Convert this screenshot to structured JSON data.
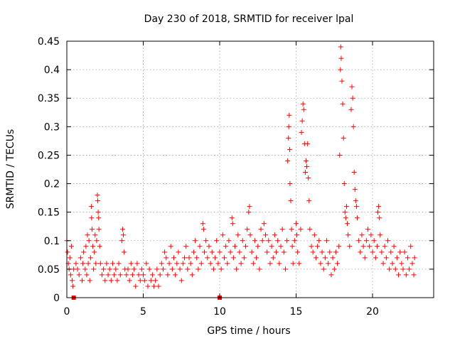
{
  "chart_data": {
    "type": "scatter",
    "title": "Day 230 of 2018, SRMTID for receiver lpal",
    "xlabel": "GPS time / hours",
    "ylabel": "SRMTID / TECUs",
    "xlim": [
      0,
      24
    ],
    "ylim": [
      0,
      0.45
    ],
    "xticks": [
      0,
      5,
      10,
      15,
      20
    ],
    "xtick_labels": [
      "0",
      "5",
      "10",
      "15",
      "20"
    ],
    "yticks": [
      0,
      0.05,
      0.1,
      0.15,
      0.2,
      0.25,
      0.3,
      0.35,
      0.4,
      0.45
    ],
    "ytick_labels": [
      "0",
      "0.05",
      "0.1",
      "0.15",
      "0.2",
      "0.25",
      "0.3",
      "0.35",
      "0.4",
      "0.45"
    ],
    "grid": true,
    "marker": "+",
    "color": "#ff0000",
    "series": [
      {
        "name": "SRMTID",
        "points": [
          [
            0.0,
            0.1
          ],
          [
            0.05,
            0.08
          ],
          [
            0.1,
            0.06
          ],
          [
            0.15,
            0.05
          ],
          [
            0.2,
            0.07
          ],
          [
            0.25,
            0.04
          ],
          [
            0.3,
            0.09
          ],
          [
            0.35,
            0.03
          ],
          [
            0.4,
            0.02
          ],
          [
            0.45,
            0.05
          ],
          [
            0.6,
            0.06
          ],
          [
            0.7,
            0.05
          ],
          [
            0.8,
            0.04
          ],
          [
            0.9,
            0.07
          ],
          [
            1.0,
            0.03
          ],
          [
            1.05,
            0.06
          ],
          [
            1.1,
            0.08
          ],
          [
            1.2,
            0.05
          ],
          [
            1.25,
            0.09
          ],
          [
            1.3,
            0.04
          ],
          [
            1.35,
            0.11
          ],
          [
            1.4,
            0.06
          ],
          [
            1.45,
            0.1
          ],
          [
            1.5,
            0.03
          ],
          [
            1.55,
            0.07
          ],
          [
            1.6,
            0.16
          ],
          [
            1.62,
            0.14
          ],
          [
            1.65,
            0.12
          ],
          [
            1.7,
            0.09
          ],
          [
            1.75,
            0.05
          ],
          [
            1.8,
            0.08
          ],
          [
            1.85,
            0.11
          ],
          [
            1.9,
            0.06
          ],
          [
            1.95,
            0.1
          ],
          [
            2.0,
            0.18
          ],
          [
            2.02,
            0.17
          ],
          [
            2.05,
            0.15
          ],
          [
            2.08,
            0.14
          ],
          [
            2.1,
            0.12
          ],
          [
            2.15,
            0.09
          ],
          [
            2.2,
            0.06
          ],
          [
            2.3,
            0.04
          ],
          [
            2.4,
            0.05
          ],
          [
            2.5,
            0.03
          ],
          [
            2.6,
            0.06
          ],
          [
            2.7,
            0.04
          ],
          [
            2.8,
            0.05
          ],
          [
            2.9,
            0.03
          ],
          [
            3.0,
            0.06
          ],
          [
            3.1,
            0.04
          ],
          [
            3.2,
            0.05
          ],
          [
            3.3,
            0.03
          ],
          [
            3.4,
            0.06
          ],
          [
            3.5,
            0.04
          ],
          [
            3.6,
            0.1
          ],
          [
            3.65,
            0.12
          ],
          [
            3.7,
            0.11
          ],
          [
            3.75,
            0.08
          ],
          [
            3.8,
            0.05
          ],
          [
            3.9,
            0.04
          ],
          [
            4.0,
            0.05
          ],
          [
            4.1,
            0.03
          ],
          [
            4.2,
            0.06
          ],
          [
            4.3,
            0.04
          ],
          [
            4.4,
            0.05
          ],
          [
            4.5,
            0.02
          ],
          [
            4.6,
            0.06
          ],
          [
            4.7,
            0.04
          ],
          [
            4.8,
            0.03
          ],
          [
            4.9,
            0.05
          ],
          [
            5.0,
            0.04
          ],
          [
            5.1,
            0.03
          ],
          [
            5.2,
            0.06
          ],
          [
            5.3,
            0.02
          ],
          [
            5.4,
            0.05
          ],
          [
            5.5,
            0.03
          ],
          [
            5.6,
            0.04
          ],
          [
            5.7,
            0.02
          ],
          [
            5.8,
            0.03
          ],
          [
            5.9,
            0.05
          ],
          [
            6.0,
            0.02
          ],
          [
            6.1,
            0.04
          ],
          [
            6.2,
            0.06
          ],
          [
            6.3,
            0.05
          ],
          [
            6.4,
            0.08
          ],
          [
            6.5,
            0.07
          ],
          [
            6.6,
            0.04
          ],
          [
            6.7,
            0.06
          ],
          [
            6.8,
            0.09
          ],
          [
            6.9,
            0.05
          ],
          [
            7.0,
            0.07
          ],
          [
            7.1,
            0.04
          ],
          [
            7.2,
            0.06
          ],
          [
            7.3,
            0.08
          ],
          [
            7.4,
            0.05
          ],
          [
            7.5,
            0.03
          ],
          [
            7.6,
            0.06
          ],
          [
            7.7,
            0.07
          ],
          [
            7.8,
            0.09
          ],
          [
            7.9,
            0.05
          ],
          [
            8.0,
            0.07
          ],
          [
            8.1,
            0.06
          ],
          [
            8.2,
            0.04
          ],
          [
            8.3,
            0.08
          ],
          [
            8.4,
            0.1
          ],
          [
            8.5,
            0.07
          ],
          [
            8.6,
            0.05
          ],
          [
            8.7,
            0.09
          ],
          [
            8.8,
            0.06
          ],
          [
            8.9,
            0.13
          ],
          [
            8.95,
            0.12
          ],
          [
            9.0,
            0.08
          ],
          [
            9.1,
            0.1
          ],
          [
            9.2,
            0.07
          ],
          [
            9.3,
            0.09
          ],
          [
            9.4,
            0.06
          ],
          [
            9.5,
            0.08
          ],
          [
            9.6,
            0.05
          ],
          [
            9.7,
            0.07
          ],
          [
            9.8,
            0.1
          ],
          [
            9.9,
            0.06
          ],
          [
            10.0,
            0.08
          ],
          [
            10.1,
            0.05
          ],
          [
            10.2,
            0.11
          ],
          [
            10.3,
            0.07
          ],
          [
            10.4,
            0.09
          ],
          [
            10.5,
            0.06
          ],
          [
            10.6,
            0.1
          ],
          [
            10.7,
            0.08
          ],
          [
            10.8,
            0.14
          ],
          [
            10.85,
            0.13
          ],
          [
            10.9,
            0.07
          ],
          [
            11.0,
            0.09
          ],
          [
            11.1,
            0.05
          ],
          [
            11.2,
            0.11
          ],
          [
            11.3,
            0.08
          ],
          [
            11.4,
            0.06
          ],
          [
            11.5,
            0.1
          ],
          [
            11.6,
            0.07
          ],
          [
            11.7,
            0.09
          ],
          [
            11.8,
            0.12
          ],
          [
            11.9,
            0.15
          ],
          [
            11.95,
            0.16
          ],
          [
            12.0,
            0.11
          ],
          [
            12.1,
            0.08
          ],
          [
            12.2,
            0.06
          ],
          [
            12.3,
            0.1
          ],
          [
            12.4,
            0.07
          ],
          [
            12.5,
            0.09
          ],
          [
            12.6,
            0.05
          ],
          [
            12.7,
            0.12
          ],
          [
            12.8,
            0.1
          ],
          [
            12.9,
            0.13
          ],
          [
            13.0,
            0.11
          ],
          [
            13.1,
            0.08
          ],
          [
            13.2,
            0.1
          ],
          [
            13.3,
            0.06
          ],
          [
            13.4,
            0.09
          ],
          [
            13.5,
            0.07
          ],
          [
            13.6,
            0.11
          ],
          [
            13.7,
            0.08
          ],
          [
            13.8,
            0.1
          ],
          [
            13.9,
            0.06
          ],
          [
            14.0,
            0.09
          ],
          [
            14.1,
            0.12
          ],
          [
            14.2,
            0.08
          ],
          [
            14.3,
            0.05
          ],
          [
            14.4,
            0.1
          ],
          [
            14.45,
            0.24
          ],
          [
            14.5,
            0.28
          ],
          [
            14.52,
            0.3
          ],
          [
            14.55,
            0.32
          ],
          [
            14.58,
            0.26
          ],
          [
            14.6,
            0.2
          ],
          [
            14.65,
            0.17
          ],
          [
            14.7,
            0.12
          ],
          [
            14.75,
            0.09
          ],
          [
            14.8,
            0.06
          ],
          [
            14.9,
            0.1
          ],
          [
            15.0,
            0.13
          ],
          [
            15.05,
            0.11
          ],
          [
            15.1,
            0.08
          ],
          [
            15.2,
            0.06
          ],
          [
            15.3,
            0.12
          ],
          [
            15.35,
            0.29
          ],
          [
            15.4,
            0.31
          ],
          [
            15.45,
            0.34
          ],
          [
            15.5,
            0.33
          ],
          [
            15.55,
            0.27
          ],
          [
            15.6,
            0.22
          ],
          [
            15.65,
            0.24
          ],
          [
            15.7,
            0.23
          ],
          [
            15.75,
            0.27
          ],
          [
            15.8,
            0.21
          ],
          [
            15.85,
            0.17
          ],
          [
            15.9,
            0.12
          ],
          [
            16.0,
            0.09
          ],
          [
            16.1,
            0.08
          ],
          [
            16.2,
            0.11
          ],
          [
            16.3,
            0.07
          ],
          [
            16.4,
            0.09
          ],
          [
            16.5,
            0.1
          ],
          [
            16.6,
            0.06
          ],
          [
            16.7,
            0.08
          ],
          [
            16.8,
            0.05
          ],
          [
            16.9,
            0.07
          ],
          [
            17.0,
            0.1
          ],
          [
            17.1,
            0.06
          ],
          [
            17.2,
            0.08
          ],
          [
            17.3,
            0.04
          ],
          [
            17.4,
            0.07
          ],
          [
            17.5,
            0.05
          ],
          [
            17.6,
            0.08
          ],
          [
            17.7,
            0.06
          ],
          [
            17.8,
            0.09
          ],
          [
            17.85,
            0.25
          ],
          [
            17.9,
            0.4
          ],
          [
            17.92,
            0.44
          ],
          [
            17.95,
            0.42
          ],
          [
            18.0,
            0.38
          ],
          [
            18.05,
            0.34
          ],
          [
            18.1,
            0.28
          ],
          [
            18.15,
            0.2
          ],
          [
            18.2,
            0.15
          ],
          [
            18.25,
            0.14
          ],
          [
            18.3,
            0.16
          ],
          [
            18.35,
            0.13
          ],
          [
            18.4,
            0.11
          ],
          [
            18.5,
            0.09
          ],
          [
            18.6,
            0.33
          ],
          [
            18.65,
            0.37
          ],
          [
            18.7,
            0.35
          ],
          [
            18.75,
            0.3
          ],
          [
            18.8,
            0.22
          ],
          [
            18.85,
            0.19
          ],
          [
            18.9,
            0.17
          ],
          [
            18.95,
            0.16
          ],
          [
            19.0,
            0.14
          ],
          [
            19.1,
            0.1
          ],
          [
            19.2,
            0.08
          ],
          [
            19.3,
            0.11
          ],
          [
            19.4,
            0.09
          ],
          [
            19.5,
            0.07
          ],
          [
            19.6,
            0.1
          ],
          [
            19.7,
            0.12
          ],
          [
            19.8,
            0.09
          ],
          [
            19.9,
            0.11
          ],
          [
            20.0,
            0.08
          ],
          [
            20.1,
            0.1
          ],
          [
            20.2,
            0.07
          ],
          [
            20.3,
            0.09
          ],
          [
            20.35,
            0.15
          ],
          [
            20.4,
            0.16
          ],
          [
            20.45,
            0.14
          ],
          [
            20.5,
            0.11
          ],
          [
            20.6,
            0.08
          ],
          [
            20.7,
            0.06
          ],
          [
            20.8,
            0.09
          ],
          [
            20.9,
            0.07
          ],
          [
            21.0,
            0.1
          ],
          [
            21.1,
            0.05
          ],
          [
            21.2,
            0.08
          ],
          [
            21.3,
            0.06
          ],
          [
            21.4,
            0.09
          ],
          [
            21.5,
            0.05
          ],
          [
            21.6,
            0.07
          ],
          [
            21.7,
            0.04
          ],
          [
            21.8,
            0.08
          ],
          [
            21.9,
            0.06
          ],
          [
            22.0,
            0.05
          ],
          [
            22.1,
            0.08
          ],
          [
            22.2,
            0.04
          ],
          [
            22.3,
            0.07
          ],
          [
            22.4,
            0.05
          ],
          [
            22.5,
            0.09
          ],
          [
            22.6,
            0.06
          ],
          [
            22.7,
            0.04
          ],
          [
            22.75,
            0.07
          ]
        ]
      }
    ],
    "zero_markers": [
      0.45,
      10.0
    ]
  }
}
